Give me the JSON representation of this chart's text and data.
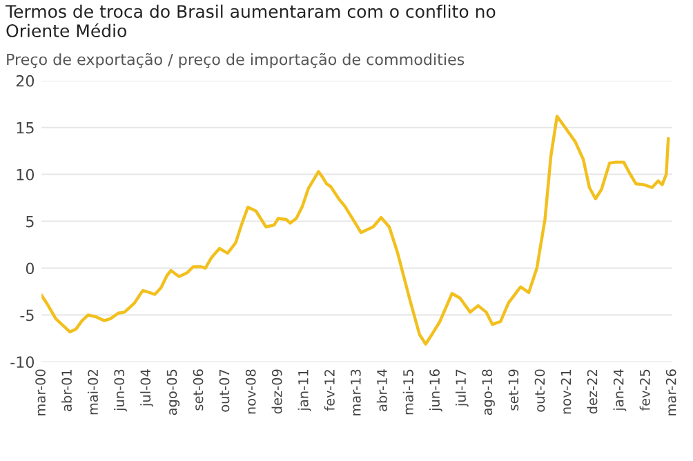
{
  "chart_data": {
    "type": "line",
    "title": "Termos de troca do Brasil aumentaram com o conflito no\nOriente Médio",
    "subtitle": "Preço de exportação / preço de importação de commodities",
    "x": [
      "2000-03",
      "2000-06",
      "2000-10",
      "2001-05",
      "2001-08",
      "2001-11",
      "2002-02",
      "2002-06",
      "2002-10",
      "2003-01",
      "2003-05",
      "2003-08",
      "2004-01",
      "2004-05",
      "2004-07",
      "2004-11",
      "2005-02",
      "2005-05",
      "2005-07",
      "2005-11",
      "2006-03",
      "2006-06",
      "2006-10",
      "2006-12",
      "2007-03",
      "2007-07",
      "2007-11",
      "2008-03",
      "2008-06",
      "2008-09",
      "2009-01",
      "2009-06",
      "2009-10",
      "2009-12",
      "2010-04",
      "2010-06",
      "2010-09",
      "2010-12",
      "2011-03",
      "2011-08",
      "2011-10",
      "2011-12",
      "2012-02",
      "2012-06",
      "2012-09",
      "2013-01",
      "2013-05",
      "2013-11",
      "2014-03",
      "2014-07",
      "2014-11",
      "2015-05",
      "2015-10",
      "2016-01",
      "2016-04",
      "2016-08",
      "2017-02",
      "2017-06",
      "2017-11",
      "2018-03",
      "2018-07",
      "2018-10",
      "2019-02",
      "2019-06",
      "2019-12",
      "2020-04",
      "2020-08",
      "2020-12",
      "2021-03",
      "2021-06",
      "2021-10",
      "2022-03",
      "2022-07",
      "2022-10",
      "2023-01",
      "2023-04",
      "2023-08",
      "2023-11",
      "2024-03",
      "2024-06",
      "2024-09",
      "2025-01",
      "2025-05",
      "2025-08",
      "2025-10",
      "2025-12",
      "2026-01"
    ],
    "series": [
      {
        "color": "#f2c01e",
        "values": [
          -2.9,
          -3.9,
          -5.4,
          -6.8,
          -6.5,
          -5.6,
          -5.0,
          -5.2,
          -5.6,
          -5.4,
          -4.8,
          -4.7,
          -3.7,
          -2.4,
          -2.5,
          -2.8,
          -2.1,
          -0.8,
          -0.25,
          -0.9,
          -0.5,
          0.15,
          0.15,
          0,
          1.1,
          2.1,
          1.6,
          2.7,
          4.7,
          6.5,
          6.1,
          4.4,
          4.6,
          5.3,
          5.2,
          4.8,
          5.3,
          6.6,
          8.5,
          10.3,
          9.7,
          9.0,
          8.7,
          7.4,
          6.6,
          5.2,
          3.8,
          4.4,
          5.4,
          4.4,
          1.7,
          -3.2,
          -7.1,
          -8.1,
          -7.1,
          -5.7,
          -2.7,
          -3.2,
          -4.7,
          -4.0,
          -4.7,
          -6.0,
          -5.7,
          -3.7,
          -2.0,
          -2.6,
          0,
          5.2,
          12.0,
          16.2,
          15.0,
          13.5,
          11.6,
          8.6,
          7.4,
          8.4,
          11.2,
          11.3,
          11.3,
          10.1,
          9.0,
          8.9,
          8.6,
          9.3,
          8.9,
          10.0,
          13.8
        ]
      }
    ],
    "xlim": [
      "2000-03",
      "2026-03"
    ],
    "xticks": [
      {
        "value": "2000-03",
        "label": "mar-00"
      },
      {
        "value": "2001-04",
        "label": "abr-01"
      },
      {
        "value": "2002-05",
        "label": "mai-02"
      },
      {
        "value": "2003-06",
        "label": "jun-03"
      },
      {
        "value": "2004-07",
        "label": "jul-04"
      },
      {
        "value": "2005-08",
        "label": "ago-05"
      },
      {
        "value": "2006-09",
        "label": "set-06"
      },
      {
        "value": "2007-10",
        "label": "out-07"
      },
      {
        "value": "2008-11",
        "label": "nov-08"
      },
      {
        "value": "2009-12",
        "label": "dez-09"
      },
      {
        "value": "2011-01",
        "label": "jan-11"
      },
      {
        "value": "2012-02",
        "label": "fev-12"
      },
      {
        "value": "2013-03",
        "label": "mar-13"
      },
      {
        "value": "2014-04",
        "label": "abr-14"
      },
      {
        "value": "2015-05",
        "label": "mai-15"
      },
      {
        "value": "2016-06",
        "label": "jun-16"
      },
      {
        "value": "2017-07",
        "label": "jul-17"
      },
      {
        "value": "2018-08",
        "label": "ago-18"
      },
      {
        "value": "2019-09",
        "label": "set-19"
      },
      {
        "value": "2020-10",
        "label": "out-20"
      },
      {
        "value": "2021-11",
        "label": "nov-21"
      },
      {
        "value": "2022-12",
        "label": "dez-22"
      },
      {
        "value": "2024-01",
        "label": "jan-24"
      },
      {
        "value": "2025-02",
        "label": "fev-25"
      },
      {
        "value": "2026-03",
        "label": "mar-26"
      }
    ],
    "ylim": [
      -10,
      20
    ],
    "yticks": [
      -10,
      -5,
      0,
      5,
      10,
      15,
      20
    ],
    "grid": "y",
    "legend": false
  }
}
